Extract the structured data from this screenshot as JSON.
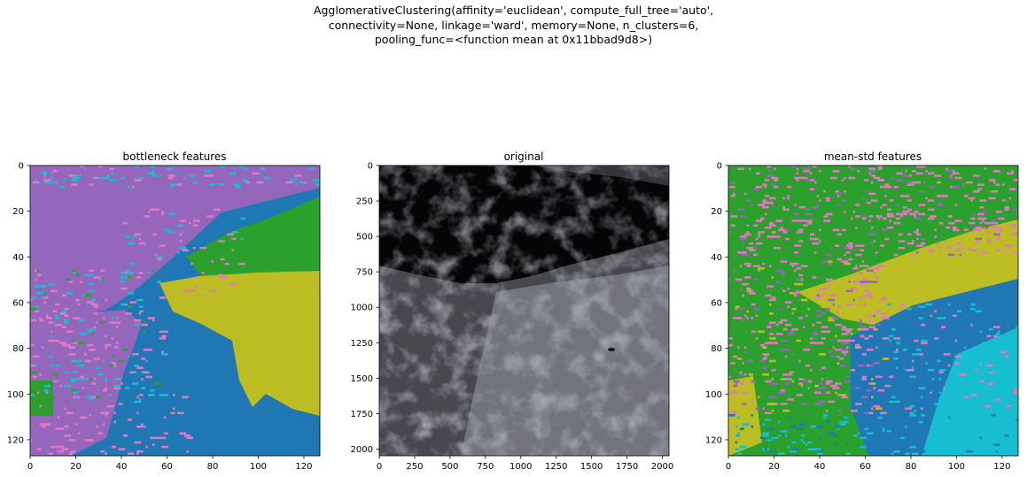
{
  "suptitle": {
    "line1": "AgglomerativeClustering(affinity='euclidean', compute_full_tree='auto',",
    "line2": "connectivity=None, linkage='ward', memory=None, n_clusters=6,",
    "line3": "pooling_func=<function mean at 0x11bbad9d8>)"
  },
  "palette": {
    "blue": "#1f77b4",
    "green": "#2ca02c",
    "purple": "#9467bd",
    "pink": "#e377c2",
    "olive": "#bcbd22",
    "cyan": "#17becf"
  },
  "chart_data": [
    {
      "type": "heatmap",
      "title": "bottleneck features",
      "description_regions": [
        "purple upper-left",
        "green upper-right band",
        "olive right-middle",
        "blue bottom-right",
        "pink/cyan speckle left"
      ],
      "xlim": [
        0,
        127
      ],
      "ylim": [
        127,
        0
      ],
      "xticks": [
        "0",
        "20",
        "40",
        "60",
        "80",
        "100",
        "120"
      ],
      "yticks": [
        "0",
        "20",
        "40",
        "60",
        "80",
        "100",
        "120"
      ]
    },
    {
      "type": "image",
      "title": "original",
      "xlim": [
        0,
        2047
      ],
      "ylim": [
        2047,
        0
      ],
      "xticks": [
        "0",
        "250",
        "500",
        "750",
        "1000",
        "1250",
        "1500",
        "1750",
        "2000"
      ],
      "yticks": [
        "0",
        "250",
        "500",
        "750",
        "1000",
        "1250",
        "1500",
        "1750",
        "2000"
      ]
    },
    {
      "type": "heatmap",
      "title": "mean-std features",
      "xlim": [
        0,
        127
      ],
      "ylim": [
        127,
        0
      ],
      "xticks": [
        "0",
        "20",
        "40",
        "60",
        "80",
        "100",
        "120"
      ],
      "yticks": [
        "0",
        "20",
        "40",
        "60",
        "80",
        "100",
        "120"
      ]
    }
  ]
}
